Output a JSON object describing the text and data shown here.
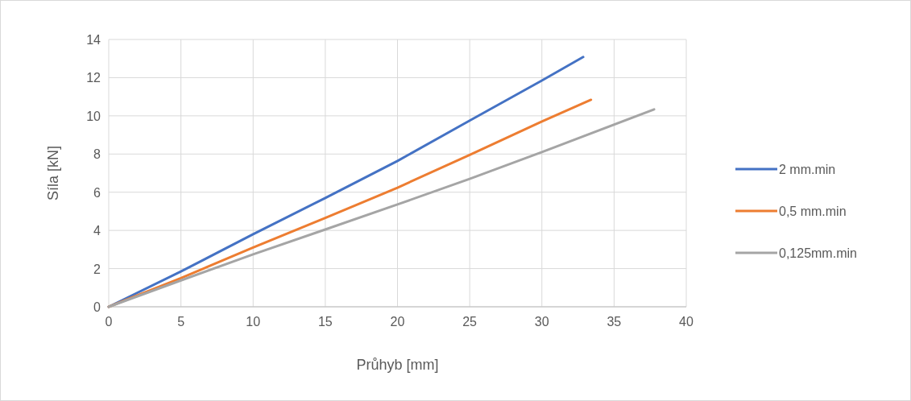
{
  "chart_data": {
    "type": "line",
    "xlabel": "Průhyb [mm]",
    "ylabel": "Síla [kN]",
    "xlim": [
      0,
      40
    ],
    "xticks": [
      0,
      5,
      10,
      15,
      20,
      25,
      30,
      35,
      40
    ],
    "ylim": [
      0,
      14
    ],
    "yticks": [
      0,
      2,
      4,
      6,
      8,
      10,
      12,
      14
    ],
    "grid": true,
    "legend": "right",
    "marker": "none",
    "line_style": "solid",
    "series": [
      {
        "name": "2 mm.min",
        "color": "#4472c4",
        "x": [
          0,
          5,
          10,
          15,
          20,
          25,
          30,
          32.86
        ],
        "values": [
          0,
          1.85,
          3.8,
          5.7,
          7.64,
          9.75,
          11.85,
          13.08
        ]
      },
      {
        "name": "0,5 mm.min",
        "color": "#ed7d31",
        "x": [
          0,
          5,
          10,
          15,
          20,
          25,
          30,
          33.4
        ],
        "values": [
          0,
          1.5,
          3.1,
          4.65,
          6.24,
          7.95,
          9.7,
          10.84
        ]
      },
      {
        "name": "0,125mm.min",
        "color": "#a5a5a5",
        "x": [
          0,
          5,
          10,
          15,
          20,
          25,
          30,
          37.77
        ],
        "values": [
          0,
          1.38,
          2.75,
          4.05,
          5.36,
          6.7,
          8.1,
          10.34
        ]
      }
    ]
  }
}
